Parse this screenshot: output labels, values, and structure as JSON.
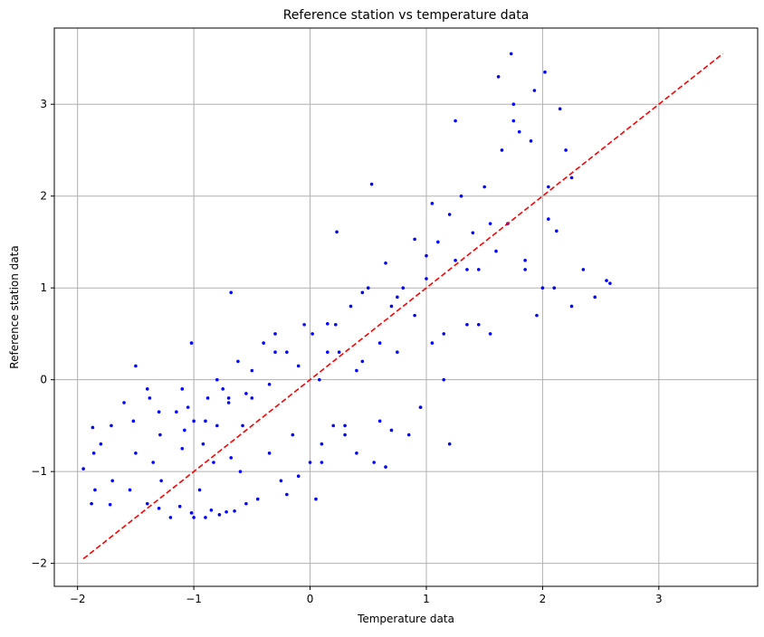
{
  "chart_data": {
    "type": "scatter",
    "title": "Reference station vs temperature data",
    "xlabel": "Temperature data",
    "ylabel": "Reference station data",
    "xlim": [
      -2.2,
      3.85
    ],
    "ylim": [
      -2.25,
      3.83
    ],
    "xticks": [
      -2,
      -1,
      0,
      1,
      2,
      3
    ],
    "yticks": [
      -2,
      -1,
      0,
      1,
      2,
      3
    ],
    "xtick_labels": [
      "−2",
      "−1",
      "0",
      "1",
      "2",
      "3"
    ],
    "ytick_labels": [
      "−2",
      "−1",
      "0",
      "1",
      "2",
      "3"
    ],
    "grid": true,
    "series": [
      {
        "kind": "points",
        "color": "#0000ff",
        "x": [
          -1.95,
          -1.88,
          -1.87,
          -1.86,
          -1.85,
          -1.72,
          -1.71,
          -1.7,
          -1.55,
          -1.52,
          -1.5,
          -1.4,
          -1.38,
          -1.35,
          -1.3,
          -1.29,
          -1.28,
          -1.12,
          -1.1,
          -1.08,
          -1.05,
          -1.02,
          -1.0,
          -0.95,
          -0.92,
          -0.9,
          -0.88,
          -0.85,
          -0.83,
          -0.8,
          -0.78,
          -0.75,
          -0.72,
          -0.7,
          -0.68,
          -0.65,
          -0.62,
          -0.6,
          -0.58,
          -0.55,
          -0.5,
          -0.45,
          -0.4,
          -0.35,
          -0.3,
          -0.25,
          -0.2,
          -0.15,
          -0.1,
          -0.05,
          0.0,
          0.02,
          0.05,
          0.08,
          0.1,
          0.15,
          0.2,
          0.22,
          0.25,
          0.3,
          0.35,
          0.4,
          0.45,
          0.5,
          0.55,
          0.6,
          0.65,
          0.7,
          0.75,
          0.8,
          0.85,
          0.9,
          0.95,
          1.0,
          1.05,
          1.1,
          1.15,
          1.2,
          1.25,
          1.3,
          1.35,
          1.4,
          1.45,
          1.5,
          1.55,
          1.6,
          1.65,
          1.7,
          1.75,
          1.8,
          1.85,
          1.9,
          1.95,
          2.0,
          2.05,
          2.1,
          2.15,
          2.2,
          2.25,
          2.35,
          2.45,
          2.55,
          2.58,
          0.53,
          0.23,
          -0.68,
          -1.02,
          -1.2,
          -1.5,
          -0.3,
          -0.5,
          -0.9,
          -1.1,
          -1.3,
          -0.7,
          -0.2,
          0.1,
          0.4,
          0.6,
          0.75,
          0.95,
          1.15,
          1.35,
          1.55,
          1.85,
          2.05,
          2.25,
          0.3,
          0.7,
          1.0,
          1.2,
          1.45,
          1.62,
          1.73,
          2.02,
          1.93,
          2.12,
          1.75,
          1.25,
          1.05,
          0.9,
          0.65,
          0.45,
          0.15,
          -0.1,
          -0.35,
          -0.55,
          -0.8,
          -1.0,
          -1.15,
          -1.4,
          -1.6,
          -1.8
        ],
        "y": [
          -0.97,
          -1.35,
          -0.52,
          -0.8,
          -1.2,
          -1.36,
          -0.5,
          -1.1,
          -1.2,
          -0.45,
          -0.8,
          -1.35,
          -0.2,
          -0.9,
          -1.4,
          -0.6,
          -1.1,
          -1.38,
          -0.1,
          -0.55,
          -0.3,
          -1.45,
          -1.5,
          -1.2,
          -0.7,
          -1.5,
          -0.2,
          -1.42,
          -0.9,
          -0.5,
          -1.47,
          -0.1,
          -1.44,
          -0.2,
          -0.85,
          -1.43,
          0.2,
          -1.0,
          -0.5,
          -1.35,
          0.1,
          -1.3,
          0.4,
          -0.8,
          0.5,
          -1.1,
          0.3,
          -0.6,
          -1.05,
          0.6,
          -0.9,
          0.5,
          -1.3,
          0.0,
          -0.7,
          0.3,
          -0.5,
          0.6,
          0.3,
          -0.6,
          0.8,
          -0.8,
          0.2,
          1.0,
          -0.9,
          0.4,
          -0.95,
          0.8,
          0.3,
          1.0,
          -0.6,
          0.7,
          -0.3,
          1.1,
          0.4,
          1.5,
          0.5,
          1.8,
          1.3,
          2.0,
          0.6,
          1.6,
          1.2,
          2.1,
          0.5,
          1.4,
          2.5,
          1.7,
          3.0,
          2.7,
          1.2,
          2.6,
          0.7,
          1.0,
          2.1,
          1.0,
          2.95,
          2.5,
          0.8,
          1.2,
          0.9,
          1.08,
          1.05,
          2.13,
          1.61,
          0.95,
          0.4,
          -1.5,
          0.15,
          0.3,
          -0.2,
          -0.45,
          -0.75,
          -0.35,
          -0.25,
          -1.25,
          -0.9,
          0.1,
          -0.45,
          0.9,
          -0.3,
          0.0,
          1.2,
          1.7,
          1.3,
          1.75,
          2.2,
          -0.5,
          -0.55,
          1.35,
          -0.7,
          0.6,
          3.3,
          3.55,
          3.35,
          3.15,
          1.62,
          2.82,
          2.82,
          1.92,
          1.53,
          1.27,
          0.95,
          0.61,
          0.15,
          -0.05,
          -0.15,
          0.0,
          -0.45,
          -0.35,
          -0.1,
          -0.25,
          -0.7
        ]
      },
      {
        "kind": "line",
        "color": "#ff0000",
        "dashed": true,
        "x": [
          -1.95,
          3.55
        ],
        "y": [
          -1.95,
          3.55
        ]
      }
    ]
  }
}
